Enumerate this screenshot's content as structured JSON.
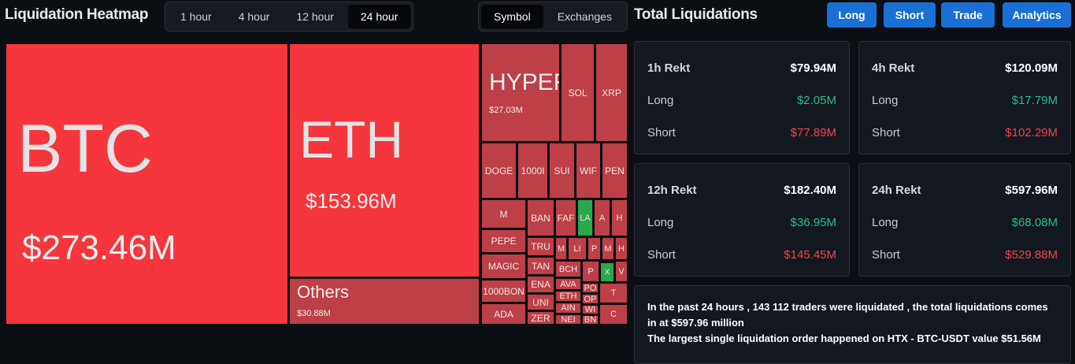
{
  "header": {
    "title": "Liquidation Heatmap",
    "time_tabs": [
      {
        "label": "1 hour",
        "selected": false
      },
      {
        "label": "4 hour",
        "selected": false
      },
      {
        "label": "12 hour",
        "selected": false
      },
      {
        "label": "24 hour",
        "selected": true
      }
    ],
    "view_tabs": [
      {
        "label": "Symbol",
        "selected": true
      },
      {
        "label": "Exchanges",
        "selected": false
      }
    ]
  },
  "treemap": {
    "tiles": [
      {
        "label": "BTC",
        "value": "$273.46M",
        "color": "#f5363c"
      },
      {
        "label": "ETH",
        "value": "$153.96M",
        "color": "#f5363c"
      },
      {
        "label": "Others",
        "value": "$30.88M",
        "color": "#bd3f47"
      },
      {
        "label": "HYPER",
        "value": "$27.03M",
        "color": "#bd3f47"
      },
      {
        "label": "SOL",
        "color": "#bd3f47"
      },
      {
        "label": "XRP",
        "color": "#bd3f47"
      },
      {
        "label": "DOGE",
        "color": "#bd3f47"
      },
      {
        "label": "1000I",
        "color": "#bd3f47"
      },
      {
        "label": "SUI",
        "color": "#bd3f47"
      },
      {
        "label": "WIF",
        "color": "#bd3f47"
      },
      {
        "label": "PEN",
        "color": "#bd3f47"
      },
      {
        "label": "M",
        "color": "#bd3f47"
      },
      {
        "label": "PEPE",
        "color": "#bd3f47"
      },
      {
        "label": "MAGIC",
        "color": "#bd3f47"
      },
      {
        "label": "1000BON",
        "color": "#bd3f47"
      },
      {
        "label": "ADA",
        "color": "#bd3f47"
      },
      {
        "label": "BAN",
        "color": "#bd3f47"
      },
      {
        "label": "FAF",
        "color": "#bd3f47"
      },
      {
        "label": "LA",
        "color": "#2aa84a"
      },
      {
        "label": "A",
        "color": "#bd3f47"
      },
      {
        "label": "H",
        "color": "#bd3f47"
      },
      {
        "label": "TRU",
        "color": "#bd3f47"
      },
      {
        "label": "TAN",
        "color": "#bd3f47"
      },
      {
        "label": "ENA",
        "color": "#bd3f47"
      },
      {
        "label": "UNI",
        "color": "#bd3f47"
      },
      {
        "label": "ZER",
        "color": "#bd3f47"
      },
      {
        "label": "M",
        "color": "#bd3f47"
      },
      {
        "label": "LI",
        "color": "#bd3f47"
      },
      {
        "label": "P",
        "color": "#bd3f47"
      },
      {
        "label": "M",
        "color": "#bd3f47"
      },
      {
        "label": "H",
        "color": "#bd3f47"
      },
      {
        "label": "BCH",
        "color": "#bd3f47"
      },
      {
        "label": "P",
        "color": "#bd3f47"
      },
      {
        "label": "X",
        "color": "#2aa84a"
      },
      {
        "label": "V",
        "color": "#bd3f47"
      },
      {
        "label": "AVA",
        "color": "#bd3f47"
      },
      {
        "label": "ETH",
        "color": "#bd3f47"
      },
      {
        "label": "AIN",
        "color": "#bd3f47"
      },
      {
        "label": "NEI",
        "color": "#bd3f47"
      },
      {
        "label": "PO",
        "color": "#bd3f47"
      },
      {
        "label": "OP",
        "color": "#bd3f47"
      },
      {
        "label": "WI",
        "color": "#bd3f47"
      },
      {
        "label": "BN",
        "color": "#bd3f47"
      },
      {
        "label": "T",
        "color": "#bd3f47"
      },
      {
        "label": "C",
        "color": "#bd3f47"
      }
    ]
  },
  "totals": {
    "title": "Total Liquidations",
    "buttons": [
      "Long",
      "Short",
      "Trade",
      "Analytics"
    ],
    "cards": [
      {
        "title": "1h Rekt",
        "total": "$79.94M",
        "rows": [
          {
            "label": "Long",
            "value": "$2.05M"
          },
          {
            "label": "Short",
            "value": "$77.89M"
          }
        ]
      },
      {
        "title": "4h Rekt",
        "total": "$120.09M",
        "rows": [
          {
            "label": "Long",
            "value": "$17.79M"
          },
          {
            "label": "Short",
            "value": "$102.29M"
          }
        ]
      },
      {
        "title": "12h Rekt",
        "total": "$182.40M",
        "rows": [
          {
            "label": "Long",
            "value": "$36.95M"
          },
          {
            "label": "Short",
            "value": "$145.45M"
          }
        ]
      },
      {
        "title": "24h Rekt",
        "total": "$597.96M",
        "rows": [
          {
            "label": "Long",
            "value": "$68.08M"
          },
          {
            "label": "Short",
            "value": "$529.88M"
          }
        ]
      }
    ],
    "summary": [
      "In the past 24 hours , 143 112 traders were liquidated , the total liquidations comes in at $597.96 million",
      "The largest single liquidation order happened on HTX - BTC-USDT value $51.56M"
    ]
  }
}
